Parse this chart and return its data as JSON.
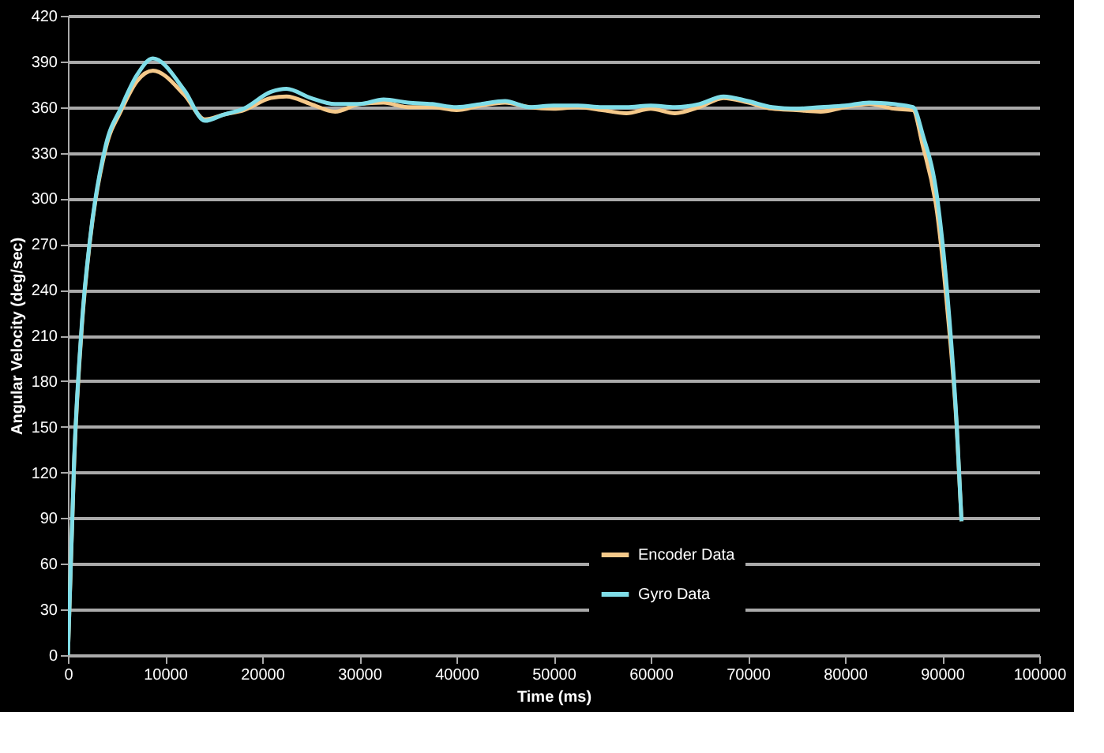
{
  "chart_data": {
    "type": "line",
    "xlabel": "Time (ms)",
    "ylabel": "Angular Velocity (deg/sec)",
    "xlim": [
      0,
      100000
    ],
    "xticks": [
      0,
      10000,
      20000,
      30000,
      40000,
      50000,
      60000,
      70000,
      80000,
      90000,
      100000
    ],
    "ylim": [
      0,
      420
    ],
    "yticks": [
      0,
      30,
      60,
      90,
      120,
      150,
      180,
      210,
      240,
      270,
      300,
      330,
      360,
      390,
      420
    ],
    "grid": "y",
    "legend": "bottom",
    "marker": "none",
    "line_style": "solid",
    "series": [
      {
        "name": "Encoder Data",
        "color": "#f5c98a",
        "x": [
          0,
          650,
          1460,
          2270,
          3900,
          5500,
          7100,
          8750,
          12000,
          14100,
          16000,
          18100,
          20900,
          22500,
          25000,
          27500,
          30000,
          32500,
          35000,
          37500,
          40000,
          42500,
          45000,
          47500,
          50000,
          52500,
          55000,
          57500,
          60000,
          62500,
          65000,
          67500,
          70000,
          72500,
          75000,
          77500,
          80000,
          82500,
          85000,
          87000,
          88000,
          89500,
          90500,
          91500,
          92000
        ],
        "values": [
          0,
          128,
          218,
          272,
          333,
          358,
          377,
          384,
          368,
          352,
          355,
          358,
          366,
          367,
          362,
          357,
          362,
          363,
          360,
          360,
          358,
          361,
          363,
          360,
          359,
          360,
          358,
          356,
          359,
          356,
          360,
          366,
          363,
          359,
          358,
          357,
          360,
          362,
          359,
          358,
          335,
          290,
          230,
          150,
          88
        ]
      },
      {
        "name": "Gyro Data",
        "color": "#7fdde8",
        "x": [
          0,
          650,
          1460,
          2270,
          3900,
          5500,
          7100,
          8750,
          12000,
          14100,
          16000,
          18100,
          20900,
          22500,
          25000,
          27500,
          30000,
          32500,
          35000,
          37500,
          40000,
          42500,
          45000,
          47500,
          50000,
          52500,
          55000,
          57500,
          60000,
          62500,
          65000,
          67500,
          70000,
          72500,
          75000,
          77500,
          80000,
          82500,
          85000,
          87000,
          88000,
          89500,
          90500,
          91500,
          92000
        ],
        "values": [
          0,
          130,
          220,
          273,
          335,
          360,
          381,
          392,
          371,
          351,
          355,
          359,
          370,
          372,
          366,
          362,
          362,
          365,
          363,
          362,
          360,
          362,
          364,
          360,
          361,
          361,
          360,
          360,
          361,
          360,
          362,
          367,
          364,
          360,
          359,
          360,
          361,
          363,
          362,
          360,
          342,
          300,
          240,
          152,
          88
        ]
      }
    ]
  }
}
